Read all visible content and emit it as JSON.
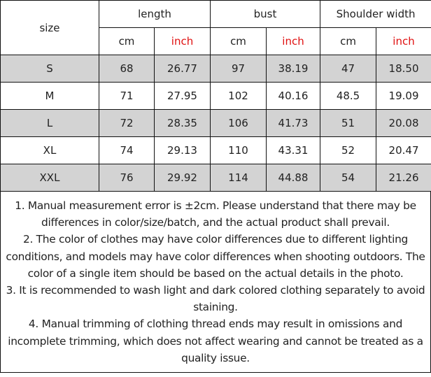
{
  "header": {
    "size": "size",
    "groups": [
      "length",
      "bust",
      "Shoulder width"
    ],
    "units": [
      "cm",
      "inch",
      "cm",
      "inch",
      "cm",
      "inch"
    ]
  },
  "colors": {
    "unit_inch": "#e01010",
    "shaded_row": "#d3d3d3"
  },
  "rows": [
    {
      "size": "S",
      "values": [
        "68",
        "26.77",
        "97",
        "38.19",
        "47",
        "18.50"
      ],
      "shaded": true
    },
    {
      "size": "M",
      "values": [
        "71",
        "27.95",
        "102",
        "40.16",
        "48.5",
        "19.09"
      ],
      "shaded": false
    },
    {
      "size": "L",
      "values": [
        "72",
        "28.35",
        "106",
        "41.73",
        "51",
        "20.08"
      ],
      "shaded": true
    },
    {
      "size": "XL",
      "values": [
        "74",
        "29.13",
        "110",
        "43.31",
        "52",
        "20.47"
      ],
      "shaded": false
    },
    {
      "size": "XXL",
      "values": [
        "76",
        "29.92",
        "114",
        "44.88",
        "54",
        "21.26"
      ],
      "shaded": true
    }
  ],
  "notes": [
    "1. Manual measurement error is ±2cm. Please understand that there may be differences in color/size/batch, and the actual product shall prevail.",
    "2. The color of clothes may have color differences due to different lighting conditions, and models may have color differences when shooting outdoors. The color of a single item should be based on the actual details in the photo.",
    "3. It is recommended to wash light and dark colored clothing separately to avoid staining.",
    "4. Manual trimming of clothing thread ends may result in omissions and incomplete trimming, which does not affect wearing and cannot be treated as a quality issue."
  ]
}
